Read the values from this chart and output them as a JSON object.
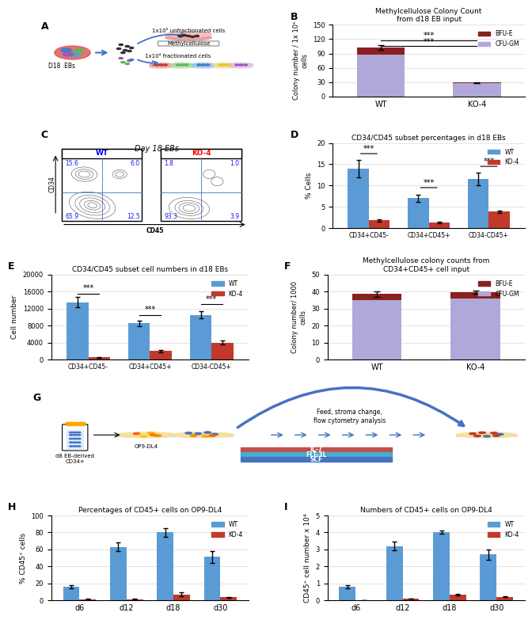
{
  "panel_B": {
    "title": "Methylcellulose Colony Count\nfrom d18 EB input",
    "ylabel": "Colony number / 1x 10⁵\ncells",
    "categories": [
      "WT",
      "KO-4"
    ],
    "BFU_E": [
      15,
      2
    ],
    "CFU_GM": [
      88,
      27
    ],
    "BFU_E_err": [
      5,
      1
    ],
    "ylim": [
      0,
      150
    ],
    "yticks": [
      0,
      30,
      60,
      90,
      120,
      150
    ],
    "color_BFU": "#8B2020",
    "color_CFU": "#b0a8d8",
    "sig_lines": [
      [
        0,
        1,
        115,
        "***"
      ],
      [
        0,
        1,
        100,
        "***"
      ]
    ]
  },
  "panel_D": {
    "title": "CD34/CD45 subset percentages in d18 EBs",
    "ylabel": "% Cells",
    "categories": [
      "CD34+CD45-",
      "CD34+CD45+",
      "CD34-CD45+"
    ],
    "WT": [
      14.0,
      7.0,
      11.5
    ],
    "KO4": [
      1.8,
      1.3,
      3.8
    ],
    "WT_err": [
      2.0,
      0.8,
      1.5
    ],
    "KO4_err": [
      0.3,
      0.2,
      0.3
    ],
    "ylim": [
      0,
      20
    ],
    "yticks": [
      0,
      5,
      10,
      15,
      20
    ],
    "color_WT": "#5b9bd5",
    "color_KO": "#c0392b"
  },
  "panel_E": {
    "title": "CD34/CD45 subset cell numbers in d18 EBs",
    "ylabel": "Cell number",
    "categories": [
      "CD34+CD45-",
      "CD34+CD45+",
      "CD34-CD45+"
    ],
    "WT": [
      13500,
      8500,
      10500
    ],
    "KO4": [
      500,
      2000,
      4000
    ],
    "WT_err": [
      1200,
      600,
      800
    ],
    "KO4_err": [
      100,
      300,
      500
    ],
    "ylim": [
      0,
      20000
    ],
    "yticks": [
      0,
      4000,
      8000,
      12000,
      16000,
      20000
    ],
    "color_WT": "#5b9bd5",
    "color_KO": "#c0392b"
  },
  "panel_F": {
    "title": "Methylcellulose colony counts from\nCD34+CD45+ cell input",
    "ylabel": "Colony number/ 1000\ncells",
    "categories": [
      "WT",
      "KO-4"
    ],
    "BFU_E": [
      3.5,
      3.5
    ],
    "CFU_GM": [
      35,
      36
    ],
    "BFU_E_err": [
      1.5,
      1.0
    ],
    "ylim": [
      0,
      50
    ],
    "yticks": [
      0,
      10,
      20,
      30,
      40,
      50
    ],
    "color_BFU": "#8B2020",
    "color_CFU": "#b0a8d8"
  },
  "panel_H": {
    "title": "Percentages of CD45+ cells on OP9-DL4",
    "ylabel": "% CD45⁺ cells",
    "categories": [
      "d6",
      "d12",
      "d18",
      "d30"
    ],
    "WT": [
      16,
      63,
      80,
      51
    ],
    "KO4": [
      1.5,
      1.5,
      7,
      3.5
    ],
    "WT_err": [
      2,
      5,
      5,
      7
    ],
    "KO4_err": [
      0.3,
      0.3,
      2,
      0.5
    ],
    "ylim": [
      0,
      100
    ],
    "yticks": [
      0,
      20,
      40,
      60,
      80,
      100
    ],
    "color_WT": "#5b9bd5",
    "color_KO": "#c0392b"
  },
  "panel_I": {
    "title": "Numbers of CD45+ cells on OP9-DL4",
    "ylabel": "CD45⁺ cell number x 10⁴",
    "categories": [
      "d6",
      "d12",
      "d18",
      "d30"
    ],
    "WT": [
      0.8,
      3.2,
      4.0,
      2.7
    ],
    "KO4": [
      0.02,
      0.1,
      0.35,
      0.2
    ],
    "WT_err": [
      0.1,
      0.25,
      0.1,
      0.3
    ],
    "KO4_err": [
      0.005,
      0.02,
      0.05,
      0.03
    ],
    "ylim": [
      0,
      5
    ],
    "yticks": [
      0,
      1,
      2,
      3,
      4,
      5
    ],
    "color_WT": "#5b9bd5",
    "color_KO": "#c0392b"
  },
  "flow_numbers": {
    "WT_top_left": "15.6",
    "WT_top_right": "6.0",
    "WT_bot_left": "65.9",
    "WT_bot_right": "12.5",
    "KO_top_left": "1.8",
    "KO_top_right": "1.0",
    "KO_bot_left": "93.3",
    "KO_bot_right": "3.9"
  },
  "il7_color": "#c0504d",
  "flt3l_color": "#4bacc6",
  "scf_color": "#4472c4"
}
